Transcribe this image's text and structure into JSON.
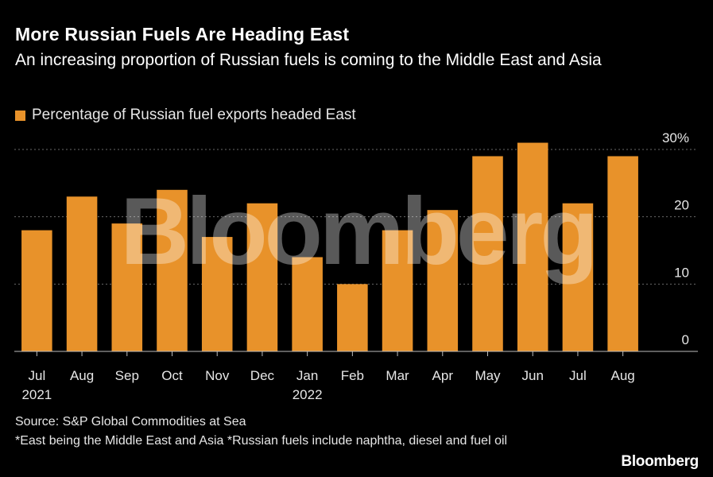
{
  "title": "More Russian Fuels Are Heading East",
  "subtitle": "An increasing proportion of Russian fuels is coming to the Middle East and Asia",
  "legend": {
    "label": "Percentage of Russian fuel exports headed East",
    "color": "#e8922a"
  },
  "watermark": "Bloomberg",
  "chart_data": {
    "type": "bar",
    "categories": [
      "Jul",
      "Aug",
      "Sep",
      "Oct",
      "Nov",
      "Dec",
      "Jan",
      "Feb",
      "Mar",
      "Apr",
      "May",
      "Jun",
      "Jul",
      "Aug"
    ],
    "year_labels": [
      "2021",
      "",
      "",
      "",
      "",
      "",
      "2022",
      "",
      "",
      "",
      "",
      "",
      "",
      ""
    ],
    "series": [
      {
        "name": "Percentage of Russian fuel exports headed East",
        "values": [
          18,
          23,
          19,
          24,
          17,
          22,
          14,
          10,
          18,
          21,
          29,
          31,
          22,
          29
        ],
        "color": "#e8922a"
      }
    ],
    "yticks": [
      "0",
      "10",
      "20",
      "30%"
    ],
    "ytick_values": [
      0,
      10,
      20,
      30
    ],
    "ylim": [
      0,
      30
    ],
    "grid": true,
    "y_axis_side": "right"
  },
  "footer": {
    "source": "Source: S&P Global Commodities at Sea",
    "notes": "*East being the Middle East and Asia *Russian fuels include naphtha, diesel and fuel oil"
  },
  "brand": "Bloomberg"
}
